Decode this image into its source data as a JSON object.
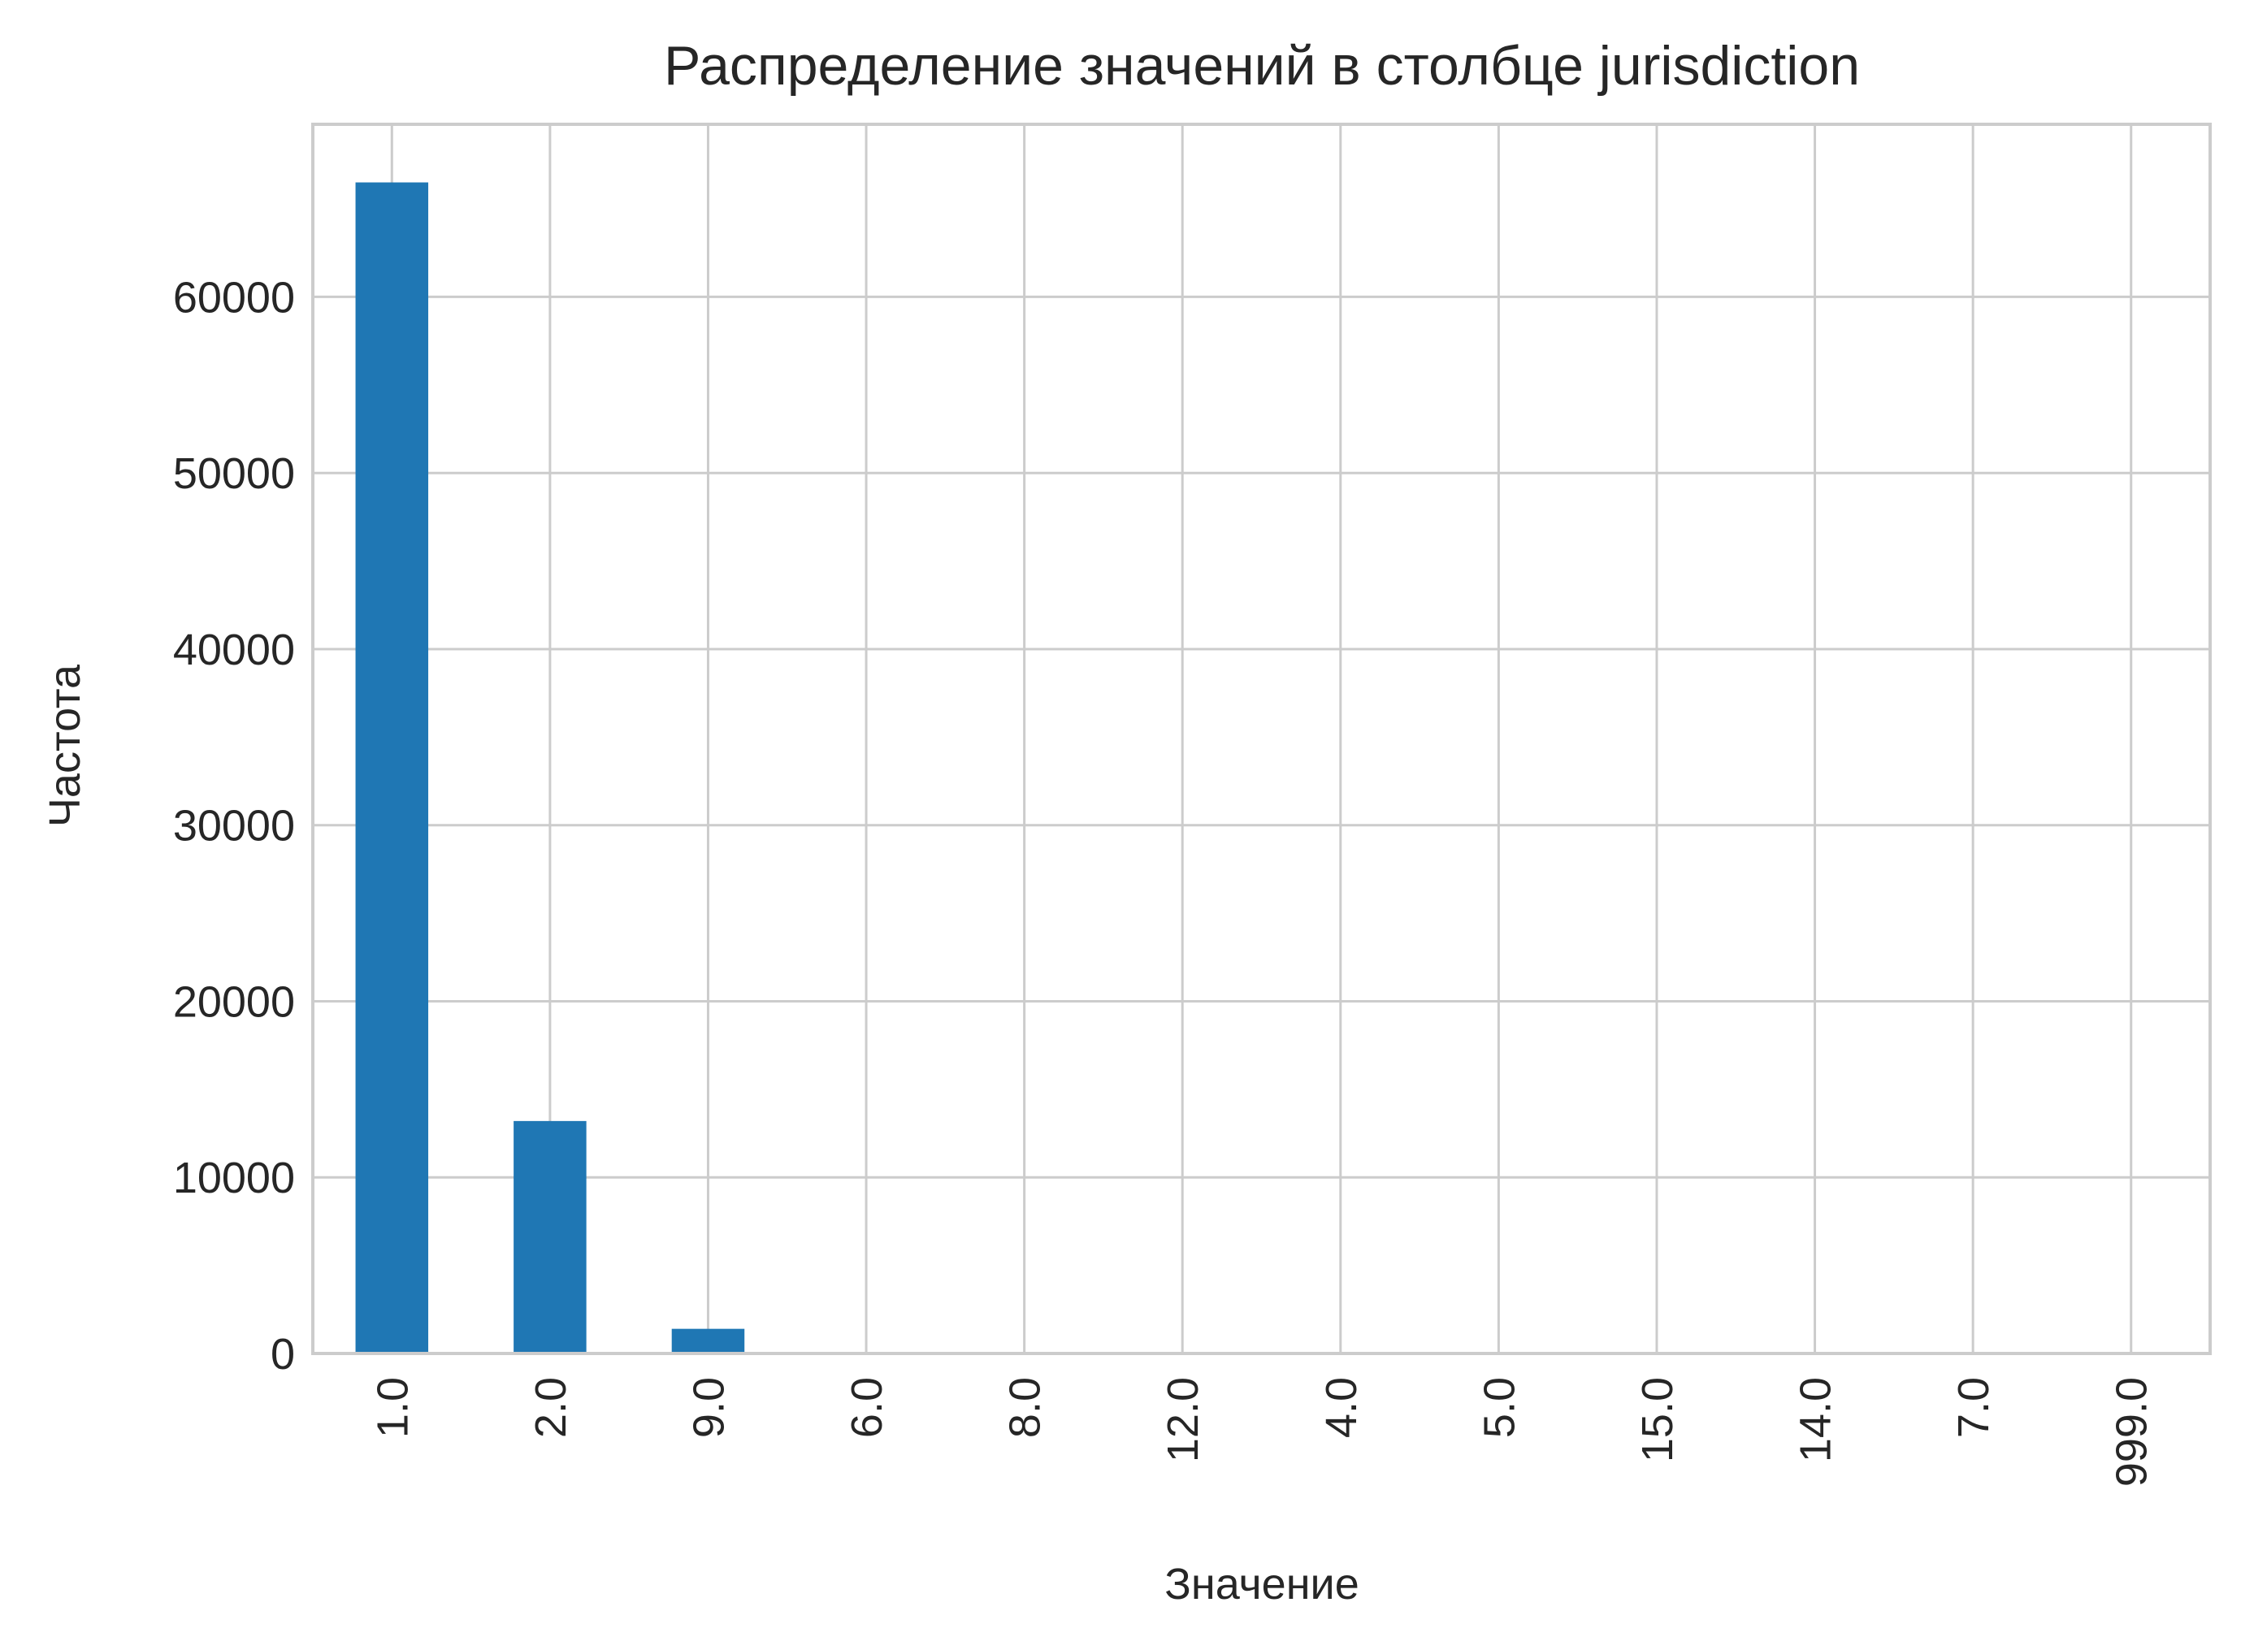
{
  "chart_data": {
    "type": "bar",
    "title": "Распределение значений в столбце jurisdiction",
    "xlabel": "Значение",
    "ylabel": "Частота",
    "categories": [
      "1.0",
      "2.0",
      "9.0",
      "6.0",
      "8.0",
      "12.0",
      "4.0",
      "5.0",
      "15.0",
      "14.0",
      "7.0",
      "999.0"
    ],
    "values": [
      66500,
      13200,
      1400,
      20,
      15,
      10,
      8,
      6,
      4,
      3,
      2,
      1
    ],
    "yticks": [
      0,
      10000,
      20000,
      30000,
      40000,
      50000,
      60000
    ],
    "ylim": [
      0,
      69800
    ],
    "grid": true,
    "legend": "none",
    "bar_color": "#1f77b4",
    "grid_color": "#cccccc",
    "text_color": "#262626"
  }
}
